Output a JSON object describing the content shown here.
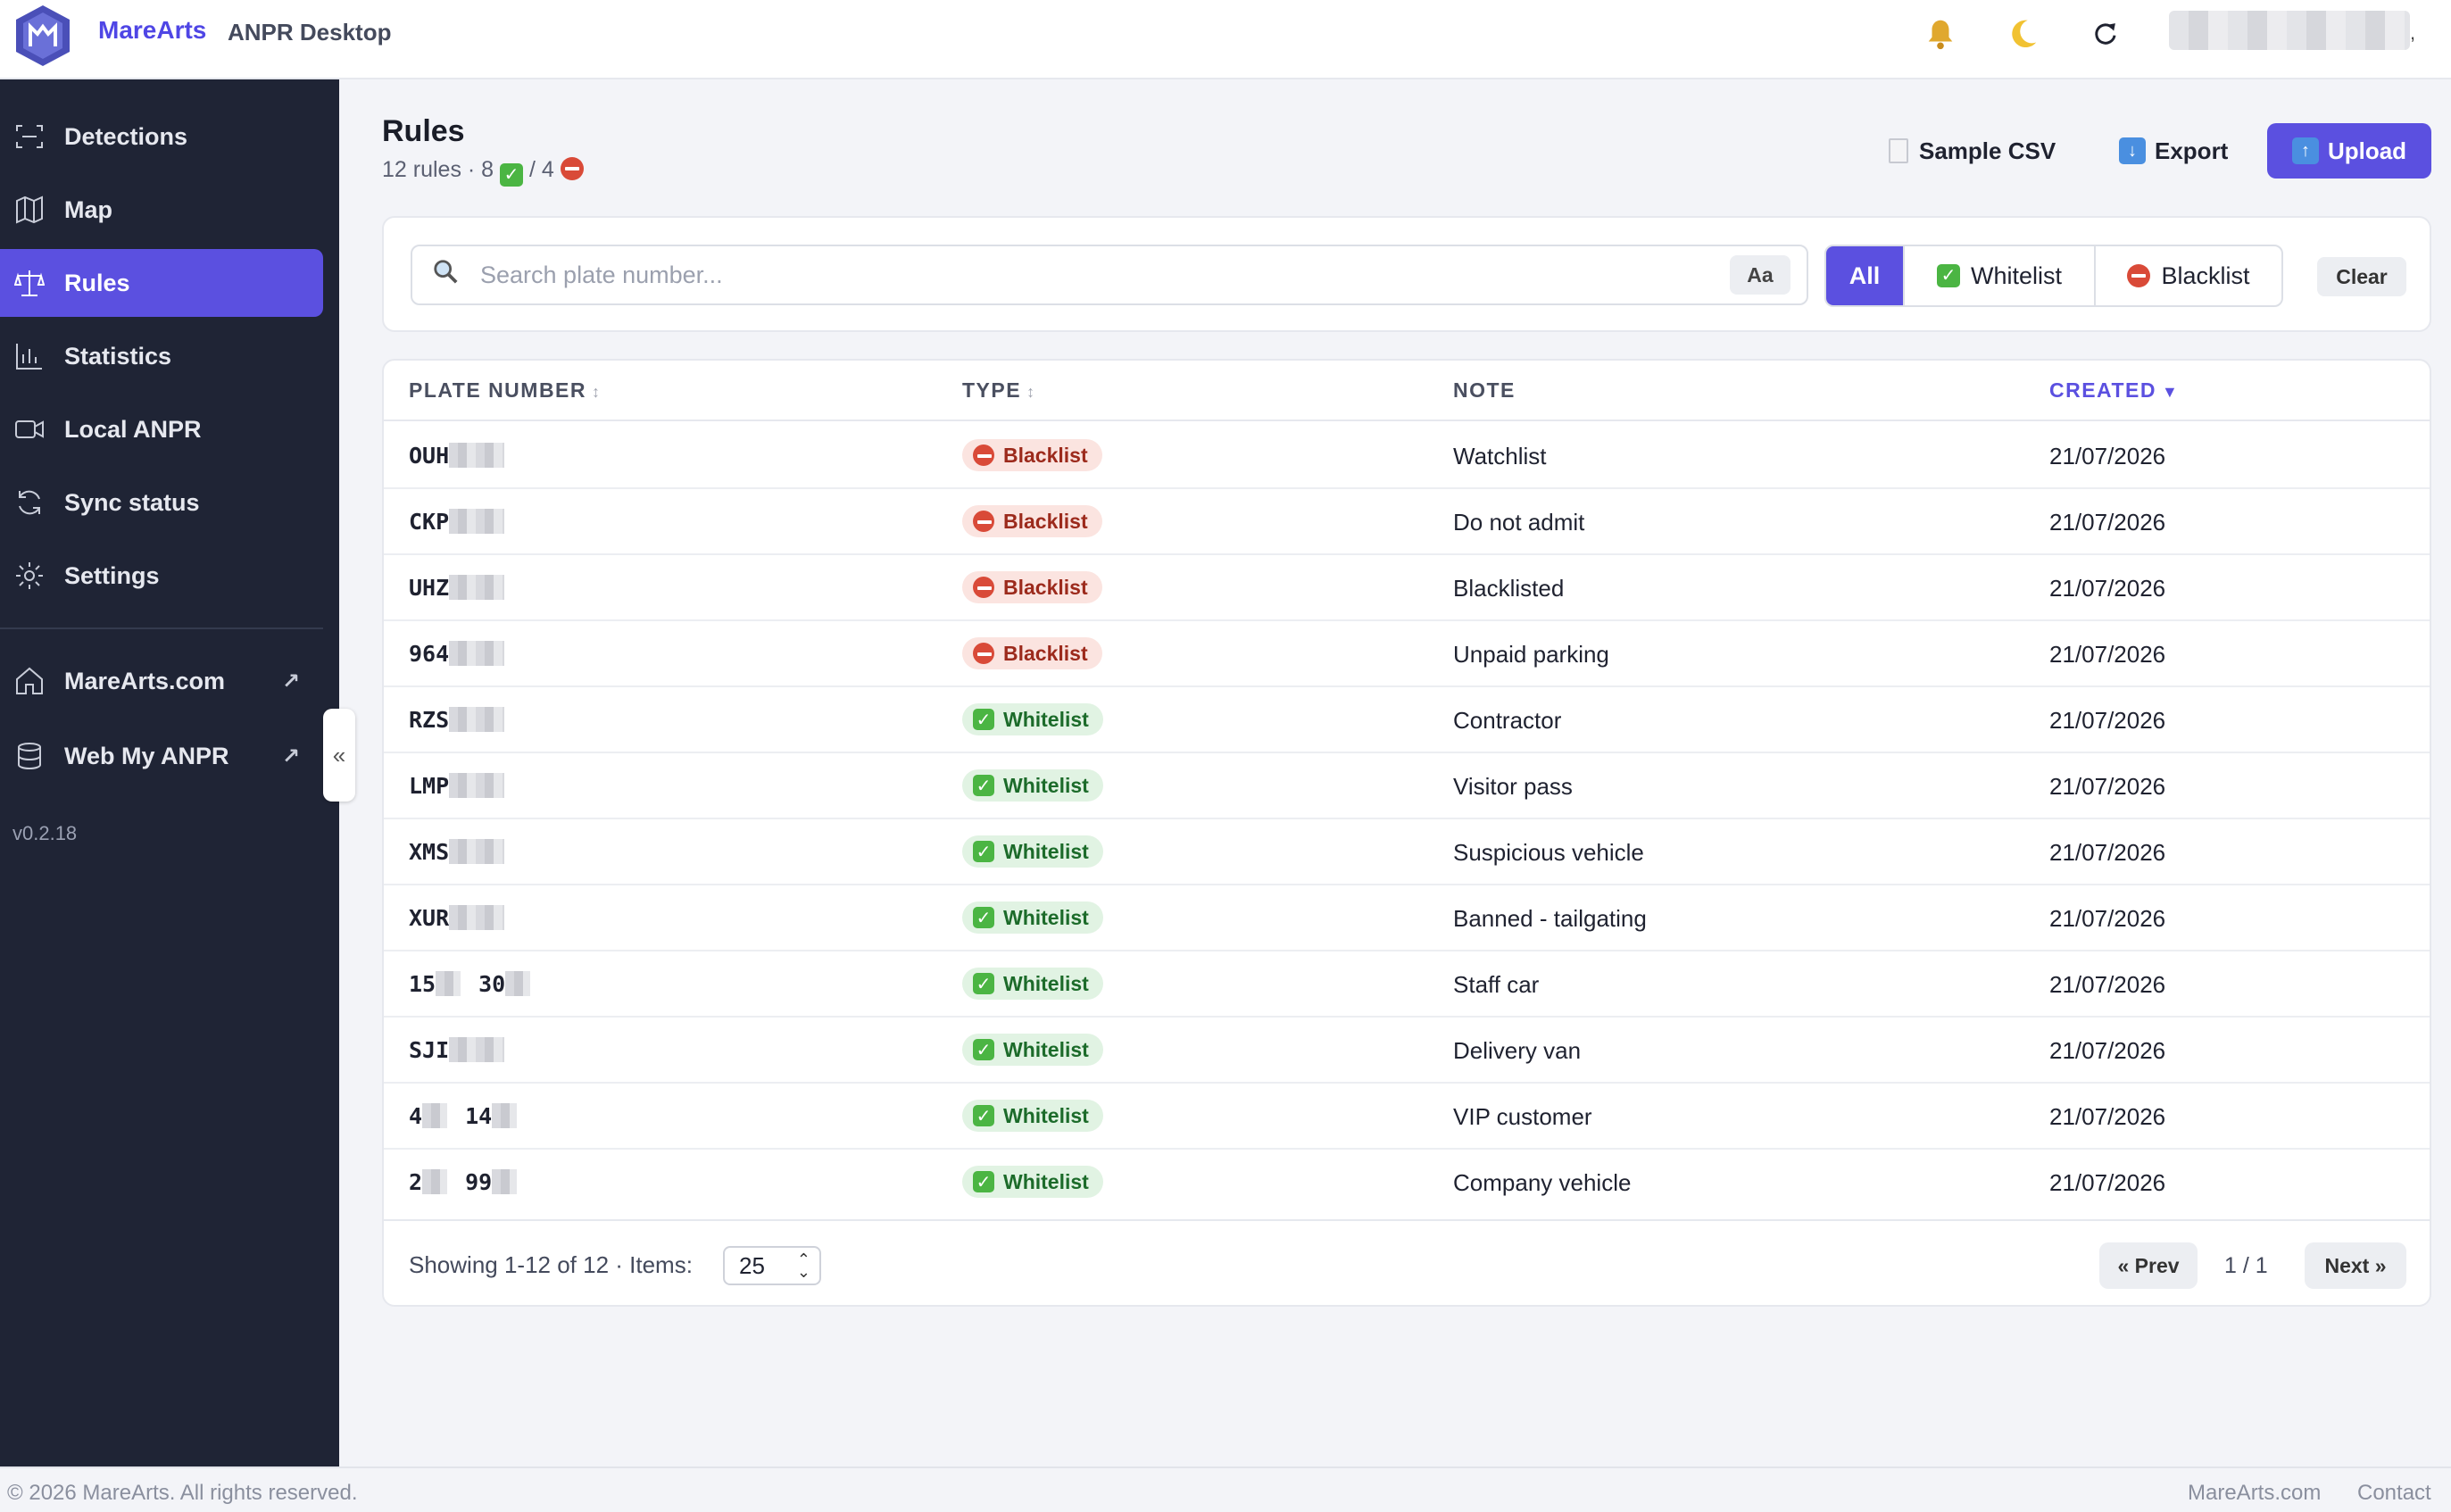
{
  "app": {
    "brand": "MareArts",
    "name": "ANPR Desktop"
  },
  "header_icons": [
    "bell-icon",
    "moon-icon",
    "refresh-icon"
  ],
  "sidebar": {
    "items": [
      {
        "label": "Detections",
        "icon": "scan-icon",
        "active": false
      },
      {
        "label": "Map",
        "icon": "map-icon",
        "active": false
      },
      {
        "label": "Rules",
        "icon": "scale-icon",
        "active": true
      },
      {
        "label": "Statistics",
        "icon": "bar-chart-icon",
        "active": false
      },
      {
        "label": "Local ANPR",
        "icon": "video-icon",
        "active": false
      },
      {
        "label": "Sync status",
        "icon": "sync-icon",
        "active": false
      },
      {
        "label": "Settings",
        "icon": "gear-icon",
        "active": false
      }
    ],
    "links": [
      {
        "label": "MareArts.com",
        "icon": "home-icon"
      },
      {
        "label": "Web My ANPR",
        "icon": "database-icon"
      }
    ],
    "version": "v0.2.18",
    "collapse": "«"
  },
  "page": {
    "title": "Rules",
    "sub_prefix": "12 rules · 8",
    "sub_sep": "/ 4"
  },
  "actions": {
    "sample": "Sample CSV",
    "export": "Export",
    "upload": "Upload"
  },
  "filter": {
    "placeholder": "Search plate number...",
    "case_toggle": "Aa",
    "all": "All",
    "whitelist": "Whitelist",
    "blacklist": "Blacklist",
    "clear": "Clear"
  },
  "table": {
    "columns": {
      "plate": "PLATE NUMBER",
      "type": "TYPE",
      "note": "NOTE",
      "created": "CREATED"
    },
    "rows": [
      {
        "plate": "OUH",
        "plate2": "",
        "type": "Blacklist",
        "note": "Watchlist",
        "created": "21/07/2026"
      },
      {
        "plate": "CKP",
        "plate2": "",
        "type": "Blacklist",
        "note": "Do not admit",
        "created": "21/07/2026"
      },
      {
        "plate": "UHZ",
        "plate2": "",
        "type": "Blacklist",
        "note": "Blacklisted",
        "created": "21/07/2026"
      },
      {
        "plate": "964",
        "plate2": "",
        "type": "Blacklist",
        "note": "Unpaid parking",
        "created": "21/07/2026"
      },
      {
        "plate": "RZS",
        "plate2": "",
        "type": "Whitelist",
        "note": "Contractor",
        "created": "21/07/2026"
      },
      {
        "plate": "LMP",
        "plate2": "",
        "type": "Whitelist",
        "note": "Visitor pass",
        "created": "21/07/2026"
      },
      {
        "plate": "XMS",
        "plate2": "",
        "type": "Whitelist",
        "note": "Suspicious vehicle",
        "created": "21/07/2026"
      },
      {
        "plate": "XUR",
        "plate2": "",
        "type": "Whitelist",
        "note": "Banned - tailgating",
        "created": "21/07/2026"
      },
      {
        "plate": "15",
        "plate2": "30",
        "type": "Whitelist",
        "note": "Staff car",
        "created": "21/07/2026"
      },
      {
        "plate": "SJI",
        "plate2": "",
        "type": "Whitelist",
        "note": "Delivery van",
        "created": "21/07/2026"
      },
      {
        "plate": "4",
        "plate2": "14",
        "type": "Whitelist",
        "note": "VIP customer",
        "created": "21/07/2026"
      },
      {
        "plate": "2",
        "plate2": "99",
        "type": "Whitelist",
        "note": "Company vehicle",
        "created": "21/07/2026"
      }
    ]
  },
  "pagination": {
    "showing": "Showing 1-12 of 12 · Items:",
    "items_per_page": "25",
    "prev": "« Prev",
    "page_info": "1 / 1",
    "next": "Next »"
  },
  "footer": {
    "copyright": "© 2026 MareArts. All rights reserved.",
    "link1": "MareArts.com",
    "link2": "Contact"
  },
  "colors": {
    "accent": "#5b50e0",
    "sidebar_bg": "#1f2435",
    "blacklist_bg": "#fbe4e0",
    "whitelist_bg": "#e1f3e3"
  }
}
